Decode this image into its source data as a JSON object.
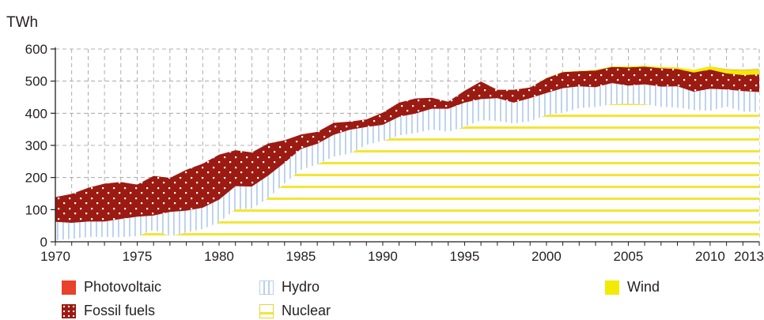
{
  "chart_data": {
    "type": "area",
    "stacked": true,
    "unit_label": "TWh",
    "ylim": [
      0,
      600
    ],
    "y_ticks": [
      0,
      100,
      200,
      300,
      400,
      500,
      600
    ],
    "xlim": [
      1970,
      2013
    ],
    "x_ticks": [
      1970,
      1975,
      1980,
      1985,
      1990,
      1995,
      2000,
      2005,
      2010,
      2013
    ],
    "grid": true,
    "legend_position": "bottom",
    "x": [
      1970,
      1971,
      1972,
      1973,
      1974,
      1975,
      1976,
      1977,
      1978,
      1979,
      1980,
      1981,
      1982,
      1983,
      1984,
      1985,
      1986,
      1987,
      1988,
      1989,
      1990,
      1991,
      1992,
      1993,
      1994,
      1995,
      1996,
      1997,
      1998,
      1999,
      2000,
      2001,
      2002,
      2003,
      2004,
      2005,
      2006,
      2007,
      2008,
      2009,
      2010,
      2011,
      2012,
      2013
    ],
    "series": [
      {
        "name": "Nuclear",
        "color": "#f2e636",
        "values": [
          5,
          9,
          15,
          15,
          14,
          18,
          37,
          18,
          29,
          40,
          61,
          101,
          103,
          136,
          182,
          224,
          241,
          265,
          275,
          302,
          314,
          331,
          338,
          350,
          342,
          358,
          378,
          376,
          368,
          375,
          395,
          401,
          416,
          420,
          428,
          430,
          428,
          420,
          418,
          410,
          408,
          421,
          405,
          404
        ]
      },
      {
        "name": "Hydro",
        "color": "#c6daf1",
        "values": [
          57,
          50,
          48,
          48,
          57,
          60,
          45,
          75,
          68,
          66,
          70,
          72,
          69,
          70,
          64,
          65,
          64,
          68,
          74,
          55,
          50,
          58,
          61,
          64,
          72,
          75,
          66,
          71,
          65,
          72,
          68,
          77,
          68,
          61,
          66,
          56,
          62,
          63,
          66,
          57,
          68,
          53,
          64,
          62
        ]
      },
      {
        "name": "Fossil fuels",
        "color": "#9b1a12",
        "values": [
          77,
          90,
          105,
          118,
          115,
          100,
          123,
          106,
          127,
          137,
          140,
          112,
          106,
          100,
          70,
          45,
          37,
          37,
          25,
          24,
          38,
          44,
          47,
          34,
          22,
          37,
          55,
          26,
          40,
          33,
          46,
          50,
          47,
          52,
          50,
          57,
          55,
          57,
          54,
          60,
          60,
          50,
          50,
          55
        ]
      },
      {
        "name": "Wind",
        "color": "#f2ea00",
        "values": [
          0,
          0,
          0,
          0,
          0,
          0,
          0,
          0,
          0,
          0,
          0,
          0,
          0,
          0,
          0,
          0,
          0,
          0,
          0,
          0,
          0,
          0,
          0,
          0,
          0,
          0,
          0,
          0,
          0,
          0,
          1,
          1,
          1,
          2,
          2,
          3,
          3,
          4,
          5,
          8,
          10,
          12,
          15,
          16
        ]
      },
      {
        "name": "Photovoltaic",
        "color": "#e8412c",
        "values": [
          0,
          0,
          0,
          0,
          0,
          0,
          0,
          0,
          0,
          0,
          0,
          0,
          0,
          0,
          0,
          0,
          0,
          0,
          0,
          0,
          0,
          0,
          0,
          0,
          0,
          0,
          0,
          0,
          0,
          0,
          0,
          0,
          0,
          0,
          0,
          0,
          0,
          0,
          0,
          0,
          0,
          1,
          1,
          1
        ]
      }
    ]
  },
  "legend": {
    "photovoltaic": "Photovoltaic",
    "fossil": "Fossil fuels",
    "hydro": "Hydro",
    "nuclear": "Nuclear",
    "wind": "Wind"
  }
}
